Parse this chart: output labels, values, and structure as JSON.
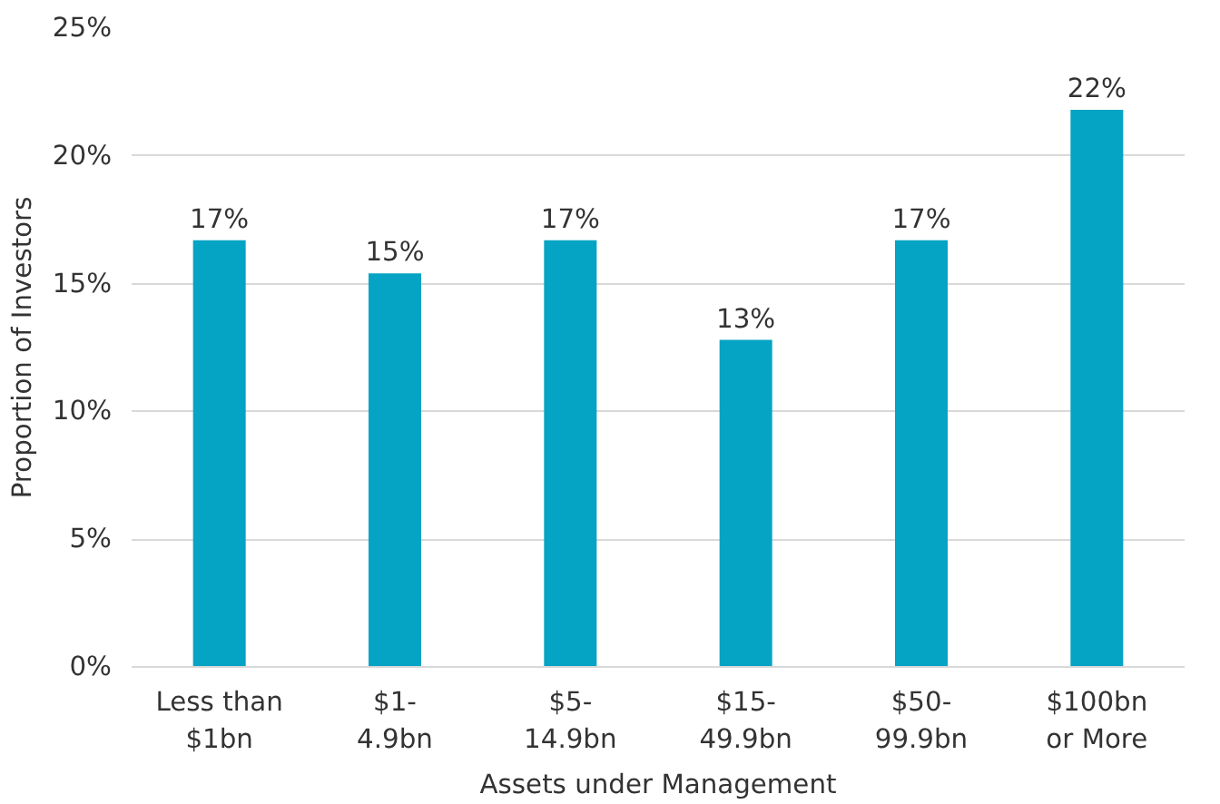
{
  "chart_data": {
    "type": "bar",
    "xlabel": "Assets under Management",
    "ylabel": "Proportion of Investors",
    "categories": [
      "Less than\n$1bn",
      "$1-\n4.9bn",
      "$5-\n14.9bn",
      "$15-\n49.9bn",
      "$50-\n99.9bn",
      "$100bn\nor More"
    ],
    "values": [
      16.7,
      15.4,
      16.7,
      12.8,
      16.7,
      21.8
    ],
    "value_labels": [
      "17%",
      "15%",
      "17%",
      "13%",
      "17%",
      "22%"
    ],
    "color": "#05a3c4",
    "ylim": [
      0,
      25
    ],
    "yticks": [
      {
        "value": 0,
        "label": "0%"
      },
      {
        "value": 5,
        "label": "5%"
      },
      {
        "value": 10,
        "label": "10%"
      },
      {
        "value": 15,
        "label": "15%"
      },
      {
        "value": 20,
        "label": "20%"
      },
      {
        "value": 25,
        "label": "25%"
      }
    ],
    "grid": "y"
  }
}
